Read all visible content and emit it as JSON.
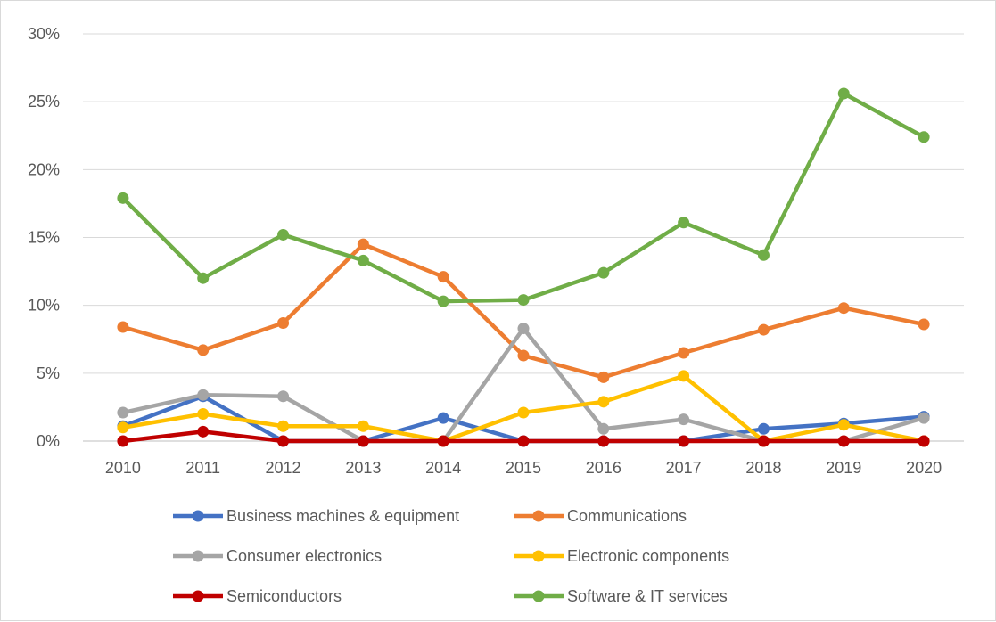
{
  "chart_data": {
    "type": "line",
    "title": "",
    "xlabel": "",
    "ylabel": "",
    "categories": [
      "2010",
      "2011",
      "2012",
      "2013",
      "2014",
      "2015",
      "2016",
      "2017",
      "2018",
      "2019",
      "2020"
    ],
    "y_ticks": [
      "0%",
      "5%",
      "10%",
      "15%",
      "20%",
      "25%",
      "30%"
    ],
    "ylim": [
      0,
      30
    ],
    "grid": "horizontal",
    "legend_position": "bottom",
    "series": [
      {
        "name": "Business machines & equipment",
        "color": "#4472c4",
        "values": [
          1.1,
          3.3,
          0.0,
          0.0,
          1.7,
          0.0,
          0.0,
          0.0,
          0.9,
          1.3,
          1.8
        ]
      },
      {
        "name": "Communications",
        "color": "#ed7d31",
        "values": [
          8.4,
          6.7,
          8.7,
          14.5,
          12.1,
          6.3,
          4.7,
          6.5,
          8.2,
          9.8,
          8.6
        ]
      },
      {
        "name": "Consumer electronics",
        "color": "#a5a5a5",
        "values": [
          2.1,
          3.4,
          3.3,
          0.0,
          0.0,
          8.3,
          0.9,
          1.6,
          0.0,
          0.0,
          1.7
        ]
      },
      {
        "name": "Electronic components",
        "color": "#ffc000",
        "values": [
          1.0,
          2.0,
          1.1,
          1.1,
          0.0,
          2.1,
          2.9,
          4.8,
          0.0,
          1.2,
          0.0
        ]
      },
      {
        "name": "Semiconductors",
        "color": "#c00000",
        "values": [
          0.0,
          0.7,
          0.0,
          0.0,
          0.0,
          0.0,
          0.0,
          0.0,
          0.0,
          0.0,
          0.0
        ]
      },
      {
        "name": "Software & IT services",
        "color": "#70ad47",
        "values": [
          17.9,
          12.0,
          15.2,
          13.3,
          10.3,
          10.4,
          12.4,
          16.1,
          13.7,
          25.6,
          22.4
        ]
      }
    ]
  }
}
